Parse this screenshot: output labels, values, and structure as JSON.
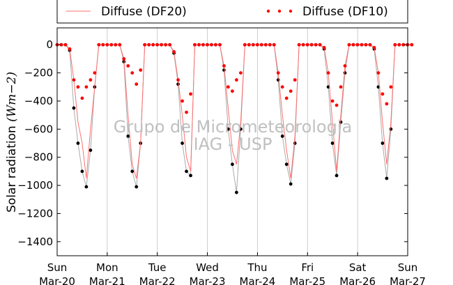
{
  "chart_data": {
    "type": "scatter",
    "xlim": [
      0,
      7
    ],
    "ylim": [
      -1500,
      120
    ],
    "grid": "vertical",
    "legend_position": "top",
    "ylabel_prefix": "Solar radiation ",
    "ylabel_math": "(Wm−2)",
    "y_ticks": [
      0,
      -200,
      -400,
      -600,
      -800,
      -1000,
      -1200,
      -1400
    ],
    "y_tick_labels": [
      "0",
      "−200",
      "−400",
      "−600",
      "−800",
      "−1000",
      "−1200",
      "−1400"
    ],
    "x_ticks": [
      {
        "x": 0,
        "line1": "Sun",
        "line2": "Mar-20"
      },
      {
        "x": 1,
        "line1": "Mon",
        "line2": "Mar-21"
      },
      {
        "x": 2,
        "line1": "Tue",
        "line2": "Mar-22"
      },
      {
        "x": 3,
        "line1": "Wed",
        "line2": "Mar-23"
      },
      {
        "x": 4,
        "line1": "Thu",
        "line2": "Mar-24"
      },
      {
        "x": 5,
        "line1": "Fri",
        "line2": "Mar-25"
      },
      {
        "x": 6,
        "line1": "Sat",
        "line2": "Mar-26"
      },
      {
        "x": 7,
        "line1": "Sun",
        "line2": "Mar-27"
      }
    ],
    "series": [
      {
        "name": "Diffuse (DF20)",
        "color": "#ff7070",
        "marker": "line",
        "y": [
          0,
          0,
          0,
          -30,
          -250,
          -550,
          -700,
          -950,
          -600,
          -300,
          0,
          0,
          0,
          0,
          0,
          0,
          -100,
          -500,
          -850,
          -950,
          -700,
          0,
          0,
          0,
          0,
          0,
          0,
          0,
          -50,
          -250,
          -500,
          -800,
          -900,
          0,
          0,
          0,
          0,
          0,
          0,
          0,
          -150,
          -450,
          -750,
          -850,
          -550,
          0,
          0,
          0,
          0,
          0,
          0,
          0,
          0,
          -200,
          -500,
          -750,
          -950,
          -650,
          0,
          0,
          0,
          0,
          0,
          0,
          -20,
          -200,
          -550,
          -900,
          -500,
          -150,
          0,
          0,
          0,
          0,
          0,
          0,
          -20,
          -200,
          -550,
          -850,
          -550,
          0,
          0,
          0,
          0,
          0
        ]
      },
      {
        "name": "Diffuse (DF10)",
        "color": "#ff0000",
        "marker": "dot",
        "y": [
          0,
          0,
          0,
          -30,
          -250,
          -300,
          -380,
          -300,
          -250,
          -200,
          0,
          0,
          0,
          0,
          0,
          0,
          -100,
          -150,
          -200,
          -280,
          -180,
          0,
          0,
          0,
          0,
          0,
          0,
          0,
          -50,
          -250,
          -400,
          -480,
          -350,
          0,
          0,
          0,
          0,
          0,
          0,
          0,
          -150,
          -300,
          -330,
          -250,
          -200,
          0,
          0,
          0,
          0,
          0,
          0,
          0,
          0,
          -200,
          -300,
          -380,
          -330,
          -250,
          0,
          0,
          0,
          0,
          0,
          0,
          -20,
          -200,
          -400,
          -430,
          -300,
          -150,
          0,
          0,
          0,
          0,
          0,
          0,
          -20,
          -200,
          -350,
          -420,
          -300,
          0,
          0,
          0,
          0,
          0
        ]
      },
      {
        "name": "",
        "color": "#000000",
        "marker": "dot",
        "y": [
          0,
          0,
          0,
          -40,
          -450,
          -700,
          -900,
          -1010,
          -750,
          -300,
          0,
          0,
          0,
          0,
          0,
          0,
          -120,
          -650,
          -900,
          -1010,
          -700,
          0,
          0,
          0,
          0,
          0,
          0,
          0,
          -60,
          -280,
          -700,
          -900,
          -930,
          0,
          0,
          0,
          0,
          0,
          0,
          0,
          -180,
          -600,
          -850,
          -1050,
          -600,
          0,
          0,
          0,
          0,
          0,
          0,
          0,
          0,
          -250,
          -650,
          -850,
          -990,
          -700,
          0,
          0,
          0,
          0,
          0,
          0,
          -30,
          -300,
          -700,
          -930,
          -550,
          -200,
          0,
          0,
          0,
          0,
          0,
          0,
          -30,
          -300,
          -700,
          -950,
          -600,
          0,
          0,
          0,
          0,
          0
        ]
      }
    ],
    "daily_series_x_start": 0,
    "daily_series_x_step": 0.0833
  },
  "watermark": {
    "line1": "Grupo de Micrometeorologia",
    "line2": "IAG - USP"
  }
}
